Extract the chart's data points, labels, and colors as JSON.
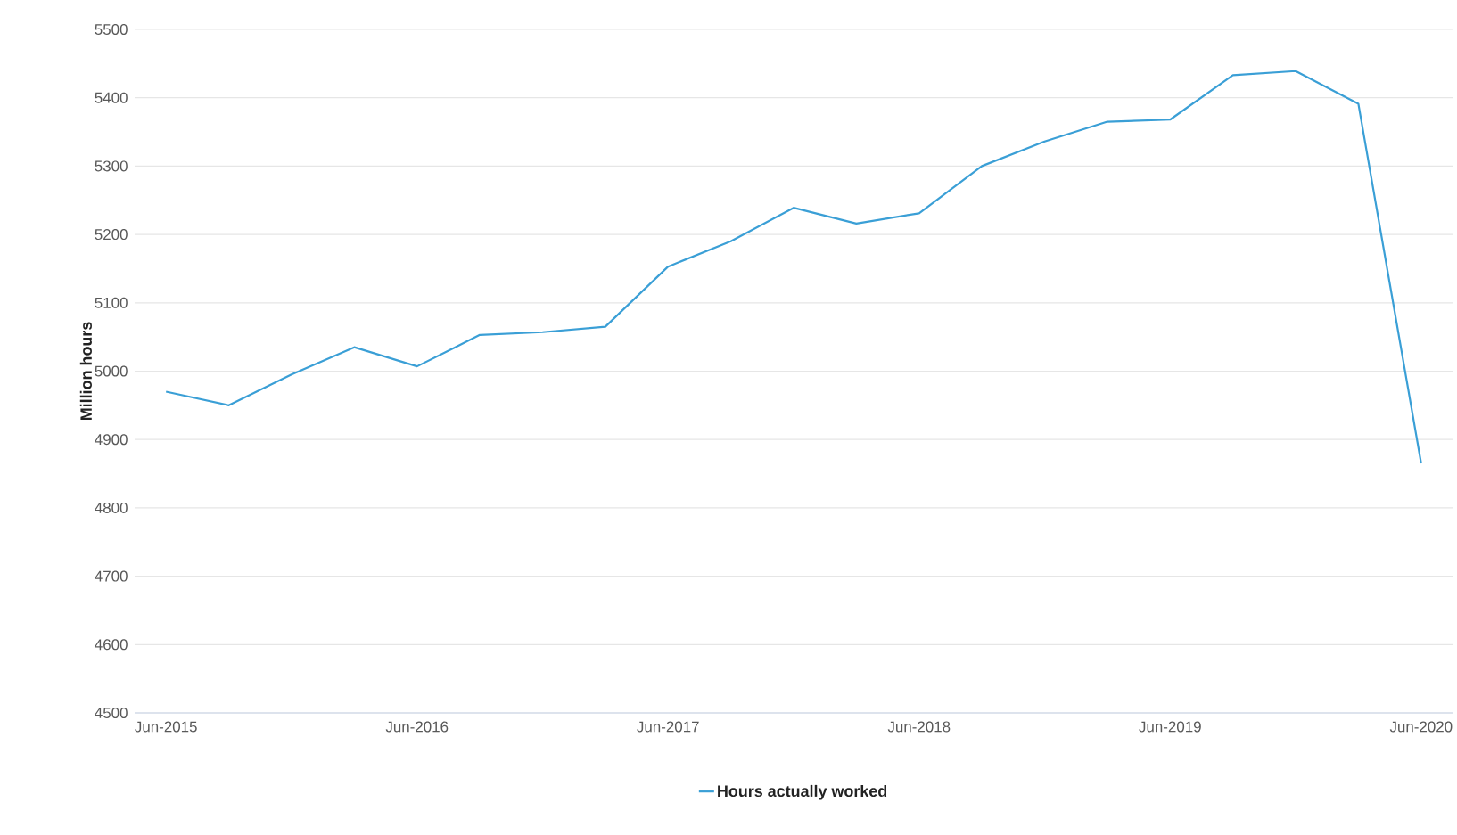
{
  "chart_data": {
    "type": "line",
    "ylabel": "Million hours",
    "categories": [
      "Jun-2015",
      null,
      null,
      null,
      "Jun-2016",
      null,
      null,
      null,
      "Jun-2017",
      null,
      null,
      null,
      "Jun-2018",
      null,
      null,
      null,
      "Jun-2019",
      null,
      null,
      null,
      "Jun-2020"
    ],
    "series": [
      {
        "name": "Hours actually worked",
        "color": "#3a9fd6",
        "values": [
          4970,
          4950,
          4995,
          5035,
          5007,
          5053,
          5057,
          5065,
          5153,
          5190,
          5239,
          5216,
          5231,
          5300,
          5336,
          5365,
          5368,
          5433,
          5439,
          5391,
          4865
        ]
      }
    ],
    "ylim": [
      4500,
      5500
    ],
    "yticks": [
      4500,
      4600,
      4700,
      4800,
      4900,
      5000,
      5100,
      5200,
      5300,
      5400,
      5500
    ],
    "grid": "y",
    "legend": "bottom",
    "marker": "none",
    "line_style": "solid"
  }
}
